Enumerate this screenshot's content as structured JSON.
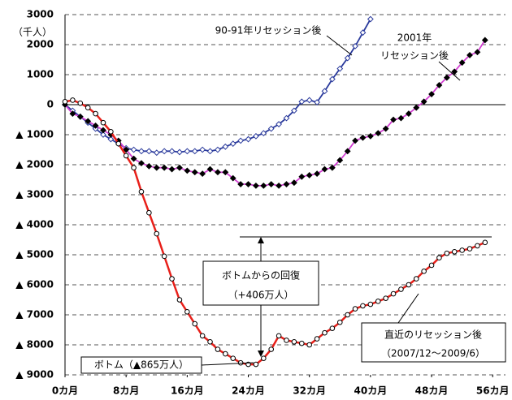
{
  "chart_data": {
    "type": "line",
    "unit_label": "（千人）",
    "x": [
      0,
      1,
      2,
      3,
      4,
      5,
      6,
      7,
      8,
      9,
      10,
      11,
      12,
      13,
      14,
      15,
      16,
      17,
      18,
      19,
      20,
      21,
      22,
      23,
      24,
      25,
      26,
      27,
      28,
      29,
      30,
      31,
      32,
      33,
      34,
      35,
      36,
      37,
      38,
      39,
      40,
      41,
      42,
      43,
      44,
      45,
      46,
      47,
      48,
      49,
      50,
      51,
      52,
      53,
      54,
      55
    ],
    "xlim": [
      0,
      58
    ],
    "xticks": [
      {
        "value": 0,
        "label": "0カ月"
      },
      {
        "value": 8,
        "label": "8カ月"
      },
      {
        "value": 16,
        "label": "16カ月"
      },
      {
        "value": 24,
        "label": "24カ月"
      },
      {
        "value": 32,
        "label": "32カ月"
      },
      {
        "value": 40,
        "label": "40カ月"
      },
      {
        "value": 48,
        "label": "48カ月"
      },
      {
        "value": 56,
        "label": "56カ月"
      }
    ],
    "ylim": [
      -9000,
      3000
    ],
    "yticks": [
      3000,
      2000,
      1000,
      0,
      {
        "value": -1000,
        "label": "▲ 1000"
      },
      {
        "value": -2000,
        "label": "▲ 2000"
      },
      {
        "value": -3000,
        "label": "▲ 3000"
      },
      {
        "value": -4000,
        "label": "▲ 4000"
      },
      {
        "value": -5000,
        "label": "▲ 5000"
      },
      {
        "value": -6000,
        "label": "▲ 6000"
      },
      {
        "value": -7000,
        "label": "▲ 7000"
      },
      {
        "value": -8000,
        "label": "▲ 8000"
      },
      {
        "value": -9000,
        "label": "▲ 9000"
      }
    ],
    "grid": true,
    "series": [
      {
        "label": [
          "90-91年リセッション後"
        ],
        "color": "#2a3a9c",
        "marker": "diamond",
        "marker_color": "#2a3a9c",
        "marker_fill": "#ffffff",
        "values": [
          0,
          -200,
          -400,
          -600,
          -800,
          -1000,
          -1150,
          -1300,
          -1450,
          -1500,
          -1550,
          -1550,
          -1600,
          -1550,
          -1550,
          -1580,
          -1550,
          -1550,
          -1500,
          -1550,
          -1500,
          -1400,
          -1300,
          -1200,
          -1150,
          -1050,
          -950,
          -800,
          -650,
          -450,
          -200,
          100,
          150,
          80,
          450,
          850,
          1200,
          1550,
          1950,
          2400,
          2850,
          null,
          null,
          null,
          null,
          null,
          null,
          null,
          null,
          null,
          null,
          null,
          null,
          null,
          null,
          null
        ]
      },
      {
        "label": [
          "2001年",
          "リセッション後"
        ],
        "color": "#d23fd2",
        "marker": "diamond",
        "marker_color": "#000000",
        "marker_fill": "#000000",
        "values": [
          0,
          -300,
          -400,
          -550,
          -700,
          -850,
          -1000,
          -1200,
          -1500,
          -1800,
          -1950,
          -2050,
          -2100,
          -2100,
          -2150,
          -2100,
          -2200,
          -2250,
          -2300,
          -2150,
          -2250,
          -2250,
          -2450,
          -2650,
          -2650,
          -2700,
          -2700,
          -2650,
          -2700,
          -2650,
          -2600,
          -2400,
          -2350,
          -2300,
          -2150,
          -2100,
          -1850,
          -1550,
          -1200,
          -1100,
          -1050,
          -950,
          -800,
          -500,
          -450,
          -300,
          -100,
          100,
          350,
          650,
          900,
          1100,
          1400,
          1650,
          1750,
          2150
        ]
      },
      {
        "label": [
          "直近のリセッション後",
          "（2007/12～2009/6）"
        ],
        "color": "#e8201a",
        "marker": "circle",
        "marker_color": "#000000",
        "marker_fill": "#ffffff",
        "values": [
          100,
          150,
          50,
          -100,
          -300,
          -600,
          -900,
          -1300,
          -1700,
          -2100,
          -2900,
          -3600,
          -4300,
          -5050,
          -5800,
          -6500,
          -6900,
          -7300,
          -7700,
          -7900,
          -8150,
          -8300,
          -8450,
          -8600,
          -8650,
          -8650,
          -8450,
          -8150,
          -7700,
          -7850,
          -7900,
          -7950,
          -8000,
          -7800,
          -7600,
          -7450,
          -7250,
          -7000,
          -6800,
          -6700,
          -6650,
          -6550,
          -6450,
          -6300,
          -6150,
          -6000,
          -5800,
          -5550,
          -5350,
          -5100,
          -4950,
          -4900,
          -4850,
          -4800,
          -4700,
          -4590
        ]
      }
    ],
    "annotations": {
      "recovery": [
        "ボトムからの回復",
        "（+406万人）"
      ],
      "bottom": [
        "ボトム（▲865万人）"
      ]
    }
  }
}
